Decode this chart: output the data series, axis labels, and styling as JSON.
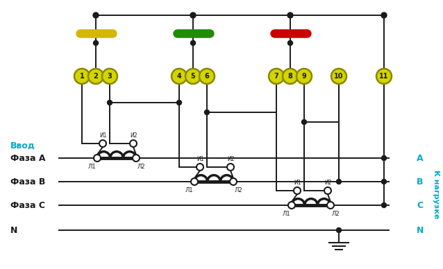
{
  "bg_color": "#ffffff",
  "line_color": "#1a1a1a",
  "cyan_color": "#00aacc",
  "yellow_bus_color": "#d4b800",
  "green_bus_color": "#228b00",
  "red_bus_color": "#cc0000",
  "circle_fill": "#d4d400",
  "circle_edge": "#888800",
  "label_vvod": "Ввод",
  "label_faza_a": "Фаза А",
  "label_faza_b": "Фаза В",
  "label_faza_c": "Фаза С",
  "label_n": "N",
  "label_a": "А",
  "label_b": "В",
  "label_c": "С",
  "label_n_right": "N",
  "label_nagruzke": "К нагрузке"
}
